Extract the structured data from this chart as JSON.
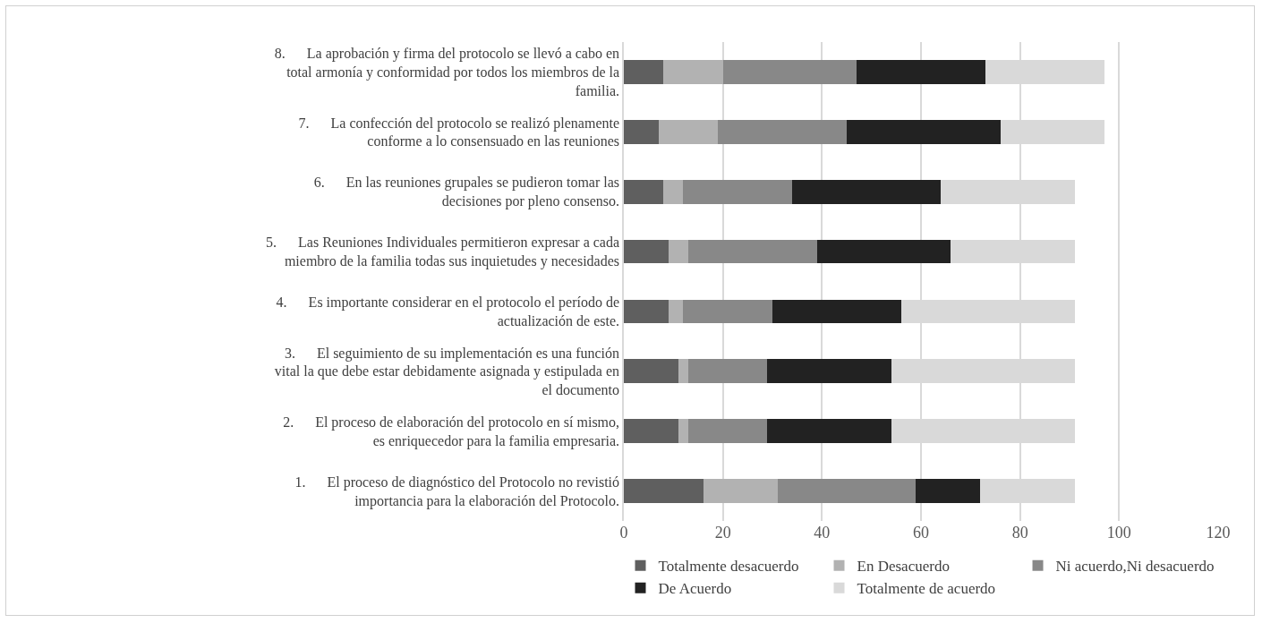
{
  "chart_data": {
    "type": "bar",
    "orientation": "horizontal",
    "stacked": true,
    "categories": [
      "8.      La aprobación y firma del protocolo se llevó a cabo en total armonía y conformidad por todos los miembros de la familia.",
      "7.      La confección del protocolo se realizó plenamente conforme a lo consensuado en las reuniones",
      "6.      En las reuniones grupales se pudieron tomar las decisiones por pleno consenso.",
      "5.      Las Reuniones Individuales permitieron expresar a cada miembro de la familia todas sus inquietudes y necesidades",
      "4.      Es importante considerar en el protocolo el período de actualización de este.",
      "3.      El seguimiento de su implementación es una función vital la que debe estar debidamente asignada y estipulada en el documento",
      "2.      El proceso de elaboración del protocolo en sí mismo, es enriquecedor para la familia empresaria.",
      "1.      El proceso de diagnóstico del Protocolo no revistió importancia para la elaboración del Protocolo."
    ],
    "series": [
      {
        "name": "Totalmente desacuerdo",
        "color": "#5f5f5f",
        "values": [
          8,
          7,
          8,
          9,
          9,
          11,
          11,
          16
        ]
      },
      {
        "name": "En Desacuerdo",
        "color": "#b2b2b2",
        "values": [
          12,
          12,
          4,
          4,
          3,
          2,
          2,
          15
        ]
      },
      {
        "name": "Ni acuerdo,Ni desacuerdo",
        "color": "#888888",
        "values": [
          27,
          26,
          22,
          26,
          18,
          16,
          16,
          28
        ]
      },
      {
        "name": "De Acuerdo",
        "color": "#222222",
        "values": [
          26,
          31,
          30,
          27,
          26,
          25,
          25,
          13
        ]
      },
      {
        "name": "Totalmente de acuerdo",
        "color": "#d9d9d9",
        "values": [
          24,
          21,
          27,
          25,
          35,
          37,
          37,
          19
        ]
      }
    ],
    "xlim": [
      0,
      120
    ],
    "xticks": [
      0,
      20,
      40,
      60,
      80,
      100,
      120
    ],
    "grid": "x",
    "legend": "bottom"
  }
}
